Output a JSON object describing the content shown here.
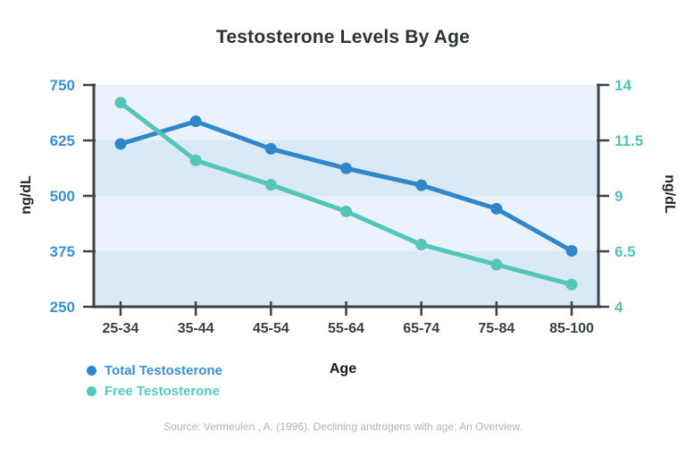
{
  "title": "Testosterone Levels By Age",
  "chart_data": {
    "type": "line",
    "categories": [
      "25-34",
      "35-44",
      "45-54",
      "55-64",
      "65-74",
      "75-84",
      "85-100"
    ],
    "series": [
      {
        "name": "Total Testosterone",
        "axis": "left",
        "color": "#2f86c9",
        "values": [
          617,
          668,
          606,
          562,
          524,
          471,
          376
        ]
      },
      {
        "name": "Free Testosterone",
        "axis": "right",
        "color": "#54c6b9",
        "values": [
          13.2,
          10.6,
          9.5,
          8.3,
          6.8,
          5.9,
          5.0
        ]
      }
    ],
    "left_axis": {
      "label": "ng/dL",
      "min": 250,
      "max": 750,
      "ticks": [
        750,
        625,
        500,
        375,
        250
      ],
      "tick_color": "#3b90d4"
    },
    "right_axis": {
      "label": "ng/dL",
      "min": 4,
      "max": 14,
      "ticks": [
        14,
        11.5,
        9,
        6.5,
        4
      ],
      "tick_color": "#52c3b8"
    },
    "xlabel": "Age",
    "legend_position": "bottom-left",
    "grid": "horizontal-bands",
    "band_colors": [
      "#eaf2fb",
      "#d9e9f6"
    ],
    "axis_color": "#3c4247",
    "x_tick_color": "#3a4045"
  },
  "legend": {
    "items": [
      {
        "label": "Total Testosterone",
        "color": "#2f86c9",
        "text_color": "#3b90d4"
      },
      {
        "label": "Free Testosterone",
        "color": "#54c6b9",
        "text_color": "#58c9bd"
      }
    ]
  },
  "footer": {
    "source": "Source: Vermeulen , A. (1996). Declining androgens with age: An Overview."
  }
}
